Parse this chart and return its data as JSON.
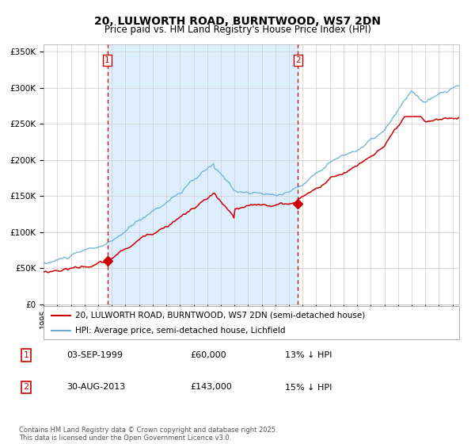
{
  "title": "20, LULWORTH ROAD, BURNTWOOD, WS7 2DN",
  "subtitle": "Price paid vs. HM Land Registry's House Price Index (HPI)",
  "legend_line1": "20, LULWORTH ROAD, BURNTWOOD, WS7 2DN (semi-detached house)",
  "legend_line2": "HPI: Average price, semi-detached house, Lichfield",
  "sale1_label": "1",
  "sale1_date": "03-SEP-1999",
  "sale1_price": "£60,000",
  "sale1_hpi": "13% ↓ HPI",
  "sale1_year": 1999.67,
  "sale1_value": 60000,
  "sale2_label": "2",
  "sale2_date": "30-AUG-2013",
  "sale2_price": "£143,000",
  "sale2_hpi": "15% ↓ HPI",
  "sale2_year": 2013.66,
  "sale2_value": 143000,
  "hpi_color": "#6aaed6",
  "price_color": "#cc0000",
  "vline_color": "#cc0000",
  "shading_color": "#ddeeff",
  "background_color": "#ffffff",
  "ylim": [
    0,
    360000
  ],
  "yticks": [
    0,
    50000,
    100000,
    150000,
    200000,
    250000,
    300000,
    350000
  ],
  "ytick_labels": [
    "£0",
    "£50K",
    "£100K",
    "£150K",
    "£200K",
    "£250K",
    "£300K",
    "£350K"
  ],
  "xmin": 1995.0,
  "xmax": 2025.5,
  "copyright": "Contains HM Land Registry data © Crown copyright and database right 2025.\nThis data is licensed under the Open Government Licence v3.0.",
  "title_fontsize": 10,
  "subtitle_fontsize": 8.5,
  "tick_fontsize": 7.5,
  "legend_fontsize": 7.5,
  "note_fontsize": 6.0
}
